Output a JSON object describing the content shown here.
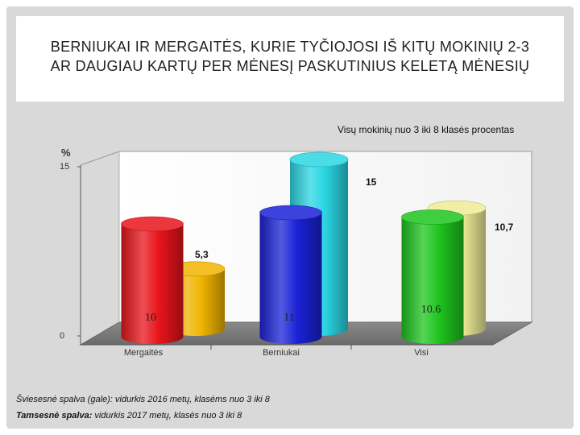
{
  "title": "BERNIUKAI IR MERGAITĖS, KURIE TYČIOJOSI IŠ KITŲ MOKINIŲ 2-3\nAR DAUGIAU KARTŲ PER MĖNESĮ PASKUTINIUS KELETĄ MĖNESIŲ",
  "notes": {
    "light": "Šviesesnė spalva (gale): vidurkis 2016 metų, klasėms nuo  3 iki  8",
    "dark_lead": "Tamsesnė spalva:",
    "dark_rest": " vidurkis 2017 metų, klasės nuo 3 iki  8"
  },
  "chart_data": {
    "type": "bar",
    "subtitle": "Visų mokinių nuo 3 iki 8 klasės procentas",
    "ylabel": "%",
    "ylim": [
      0,
      15
    ],
    "yticks": [
      "0",
      "15"
    ],
    "categories": [
      "Mergaitės",
      "Berniukai",
      "Visi"
    ],
    "series": [
      {
        "values": [
          10,
          11,
          10.6
        ],
        "labels": [
          "10",
          "11",
          "10.6"
        ],
        "colors": [
          "#e8141b",
          "#1a22d6",
          "#1ec51e"
        ]
      },
      {
        "values": [
          5.3,
          15,
          10.7
        ],
        "labels": [
          "5,3",
          "15",
          "10,7"
        ],
        "colors": [
          "#f0b400",
          "#2ad6e3",
          "#eeec96"
        ]
      }
    ]
  }
}
